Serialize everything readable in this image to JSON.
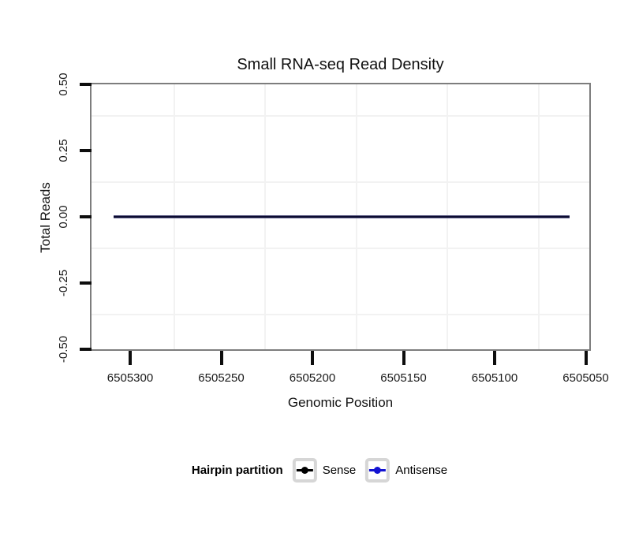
{
  "title": "Small RNA-seq Read Density",
  "chart_data": {
    "type": "line",
    "title": "Small RNA-seq Read Density",
    "xlabel": "Genomic Position",
    "ylabel": "Total Reads",
    "x_axis_reversed": true,
    "xlim": [
      6505321,
      6505048
    ],
    "ylim": [
      -0.5,
      0.5
    ],
    "x_ticks": [
      6505300,
      6505250,
      6505200,
      6505150,
      6505100,
      6505050
    ],
    "x_tick_labels": [
      "6505300",
      "6505250",
      "6505200",
      "6505150",
      "6505100",
      "6505050"
    ],
    "y_ticks": [
      0.5,
      0.25,
      0.0,
      -0.25,
      -0.5
    ],
    "y_tick_labels": [
      "0.50",
      "0.25",
      "0.00",
      "-0.25",
      "-0.50"
    ],
    "grid": "faint minor gridlines between ticks, white panel background, gray panel border",
    "legend_position": "bottom",
    "legend_title": "Hairpin partition",
    "series": [
      {
        "name": "Sense",
        "color": "#000000",
        "x": [
          6505309,
          6505059
        ],
        "y": [
          0,
          0
        ]
      },
      {
        "name": "Antisense",
        "color": "#1313d2",
        "x": [
          6505309,
          6505059
        ],
        "y": [
          0,
          0
        ]
      }
    ]
  },
  "legend": {
    "title": "Hairpin partition",
    "items": [
      {
        "label": "Sense",
        "color": "#000000"
      },
      {
        "label": "Antisense",
        "color": "#1313d2"
      }
    ]
  },
  "colors": {
    "panel_border": "#7d7d7d",
    "gridline": "#f2f2f2",
    "tick": "#0d0d0d",
    "overlapped_line": "#0c0c30",
    "legend_key_border": "#d6d6d6"
  }
}
